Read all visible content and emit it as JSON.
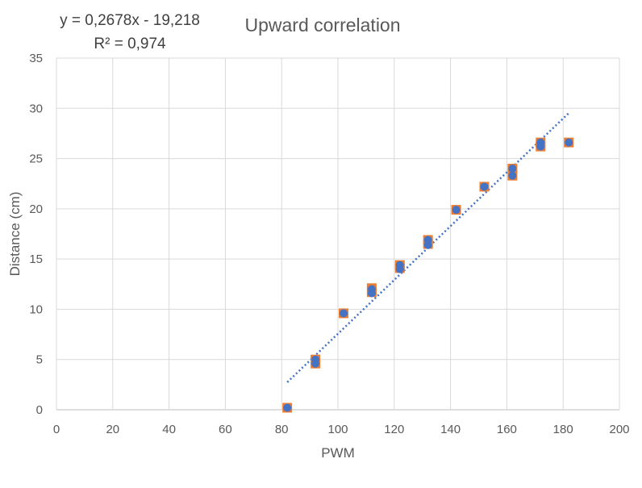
{
  "chart_data": {
    "type": "scatter",
    "title": "Upward correlation",
    "xlabel": "PWM",
    "ylabel": "Distance (cm)",
    "xlim": [
      0,
      200
    ],
    "ylim": [
      0,
      35
    ],
    "x_ticks": [
      0,
      20,
      40,
      60,
      80,
      100,
      120,
      140,
      160,
      180,
      200
    ],
    "y_ticks": [
      0,
      5,
      10,
      15,
      20,
      25,
      30,
      35
    ],
    "grid": true,
    "legend": "none",
    "series": [
      {
        "marker": "square",
        "color": "#ED7D31",
        "points": [
          [
            82,
            0.2
          ],
          [
            92,
            4.6
          ],
          [
            92,
            5.0
          ],
          [
            102,
            9.6
          ],
          [
            112,
            11.7
          ],
          [
            112,
            12.1
          ],
          [
            122,
            14.1
          ],
          [
            122,
            14.4
          ],
          [
            132,
            16.5
          ],
          [
            132,
            16.9
          ],
          [
            142,
            19.9
          ],
          [
            152,
            22.2
          ],
          [
            162,
            23.3
          ],
          [
            162,
            24.0
          ],
          [
            172,
            26.2
          ],
          [
            172,
            26.6
          ],
          [
            182,
            26.6
          ]
        ]
      },
      {
        "marker": "circle",
        "color": "#4472C4",
        "points": [
          [
            82,
            0.2
          ],
          [
            92,
            4.6
          ],
          [
            92,
            5.0
          ],
          [
            102,
            9.6
          ],
          [
            112,
            11.6
          ],
          [
            112,
            12.0
          ],
          [
            122,
            14.0
          ],
          [
            122,
            14.4
          ],
          [
            132,
            16.4
          ],
          [
            132,
            16.9
          ],
          [
            142,
            19.9
          ],
          [
            152,
            22.2
          ],
          [
            162,
            23.3
          ],
          [
            162,
            24.0
          ],
          [
            172,
            26.2
          ],
          [
            172,
            26.6
          ],
          [
            182,
            26.6
          ]
        ]
      }
    ],
    "trendline": {
      "type": "linear",
      "slope": 0.2678,
      "intercept": -19.218,
      "x_range": [
        82,
        182
      ],
      "color": "#4472C4",
      "style": "dotted",
      "equation_label": "y = 0,2678x - 19,218",
      "r2_label": "R² = 0,974"
    }
  }
}
